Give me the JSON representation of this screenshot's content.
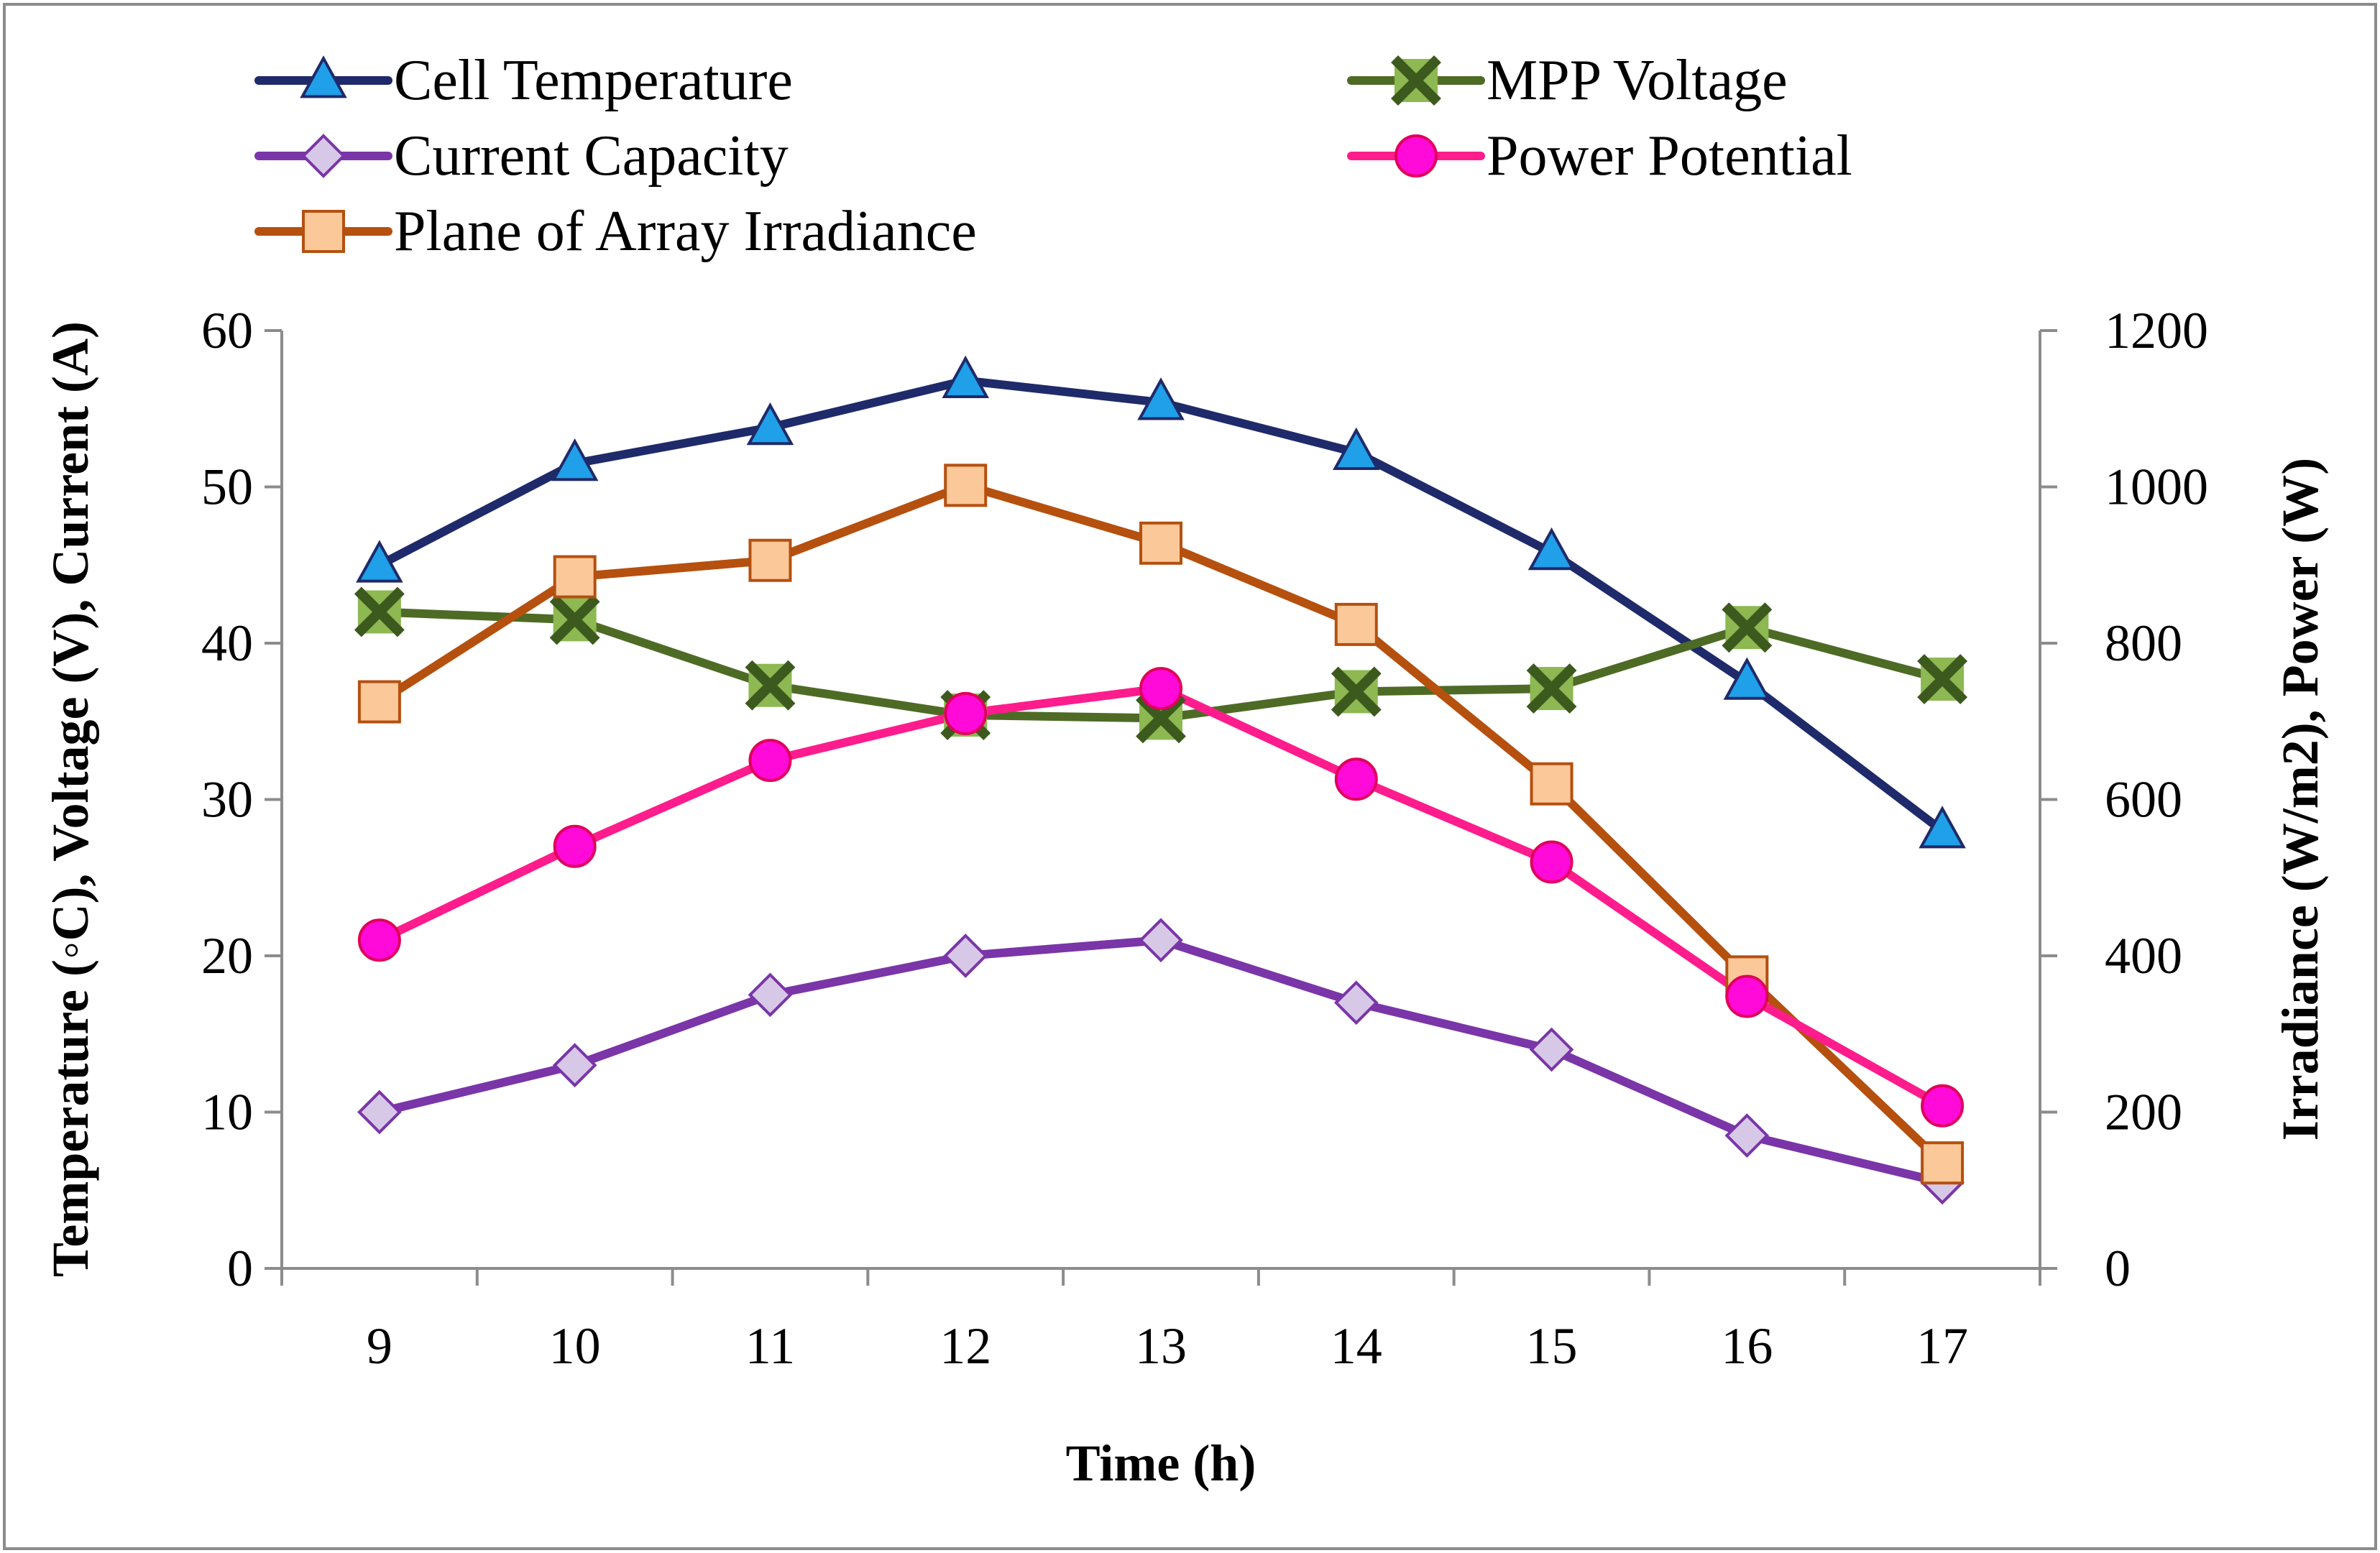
{
  "chart_data": {
    "type": "line",
    "x": [
      9,
      10,
      11,
      12,
      13,
      14,
      15,
      16,
      17
    ],
    "x_tick_labels": [
      "9",
      "10",
      "11",
      "12",
      "13",
      "14",
      "15",
      "16",
      "17"
    ],
    "xlabel": "Time (h)",
    "ylabel_left": "Temperature (◦C), Voltage (V), Current (A)",
    "ylabel_right": "Irradiance (W/m2),  Power (W)",
    "ylim_left": [
      0,
      60
    ],
    "ylim_right": [
      0,
      1200
    ],
    "y_ticks_left": [
      0,
      10,
      20,
      30,
      40,
      50,
      60
    ],
    "y_ticks_right": [
      0,
      200,
      400,
      600,
      800,
      1000,
      1200
    ],
    "legend_position": "top",
    "series": [
      {
        "name": "Cell Temperature",
        "axis": "left",
        "marker": "triangle",
        "line_color": "#1F2A6B",
        "marker_fill": "#1FA0E8",
        "marker_stroke": "#1F2A6B",
        "values": [
          45,
          51.5,
          53.8,
          56.8,
          55.4,
          52.2,
          45.8,
          37.5,
          28
        ]
      },
      {
        "name": "MPP Voltage",
        "axis": "left",
        "marker": "x-square",
        "line_color": "#4E6B25",
        "marker_fill": "#8DB852",
        "marker_stroke": "#3D5A1E",
        "values": [
          42,
          41.5,
          37.3,
          35.4,
          35.2,
          36.9,
          37.1,
          41,
          37.7
        ]
      },
      {
        "name": "Current Capacity",
        "axis": "left",
        "marker": "diamond",
        "line_color": "#7A35A8",
        "marker_fill": "#D8C8E8",
        "marker_stroke": "#7A35A8",
        "values": [
          10,
          13,
          17.5,
          20,
          21,
          17,
          14,
          8.5,
          5.5
        ]
      },
      {
        "name": "Power  Potential",
        "axis": "right",
        "marker": "circle",
        "line_color": "#FF1C8C",
        "marker_fill": "#FF0AD8",
        "marker_stroke": "#E0005A",
        "values": [
          420,
          540,
          650,
          710,
          742,
          626,
          520,
          348,
          208
        ]
      },
      {
        "name": "Plane of Array Irradiance",
        "axis": "right",
        "marker": "square",
        "line_color": "#B5500F",
        "marker_fill": "#FBC89A",
        "marker_stroke": "#B5500F",
        "values": [
          725,
          885,
          906,
          1002,
          928,
          824,
          620,
          373,
          135
        ]
      }
    ]
  }
}
